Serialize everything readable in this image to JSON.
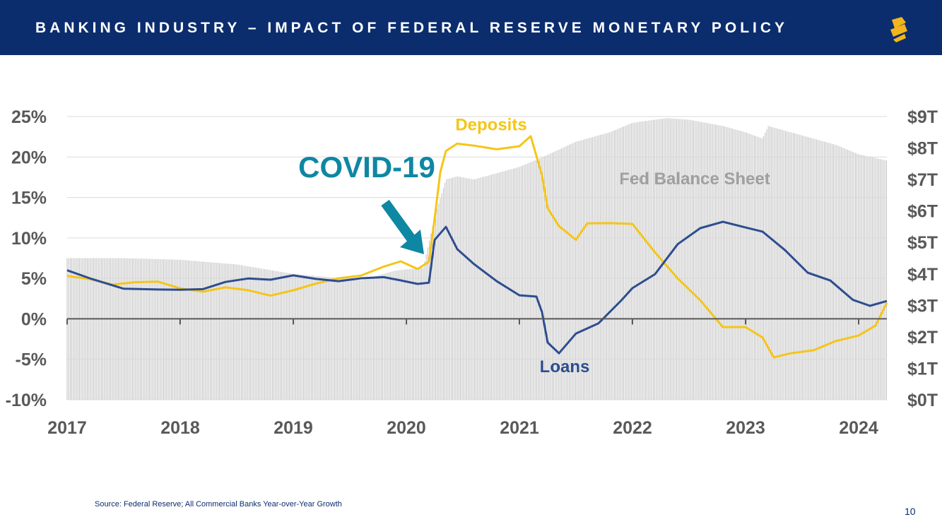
{
  "header": {
    "title": "BANKING INDUSTRY – IMPACT OF FEDERAL RESERVE MONETARY POLICY"
  },
  "footer": {
    "source": "Source: Federal Reserve; All Commercial Banks Year-over-Year Growth",
    "page_number": "10"
  },
  "colors": {
    "navy": "#0b2d6e",
    "deposits": "#f5c518",
    "loans": "#2e4d8f",
    "annotation": "#0e87a3",
    "balance": "#a0a0a0",
    "logo": "#f2b51c"
  },
  "chart_data": {
    "type": "line",
    "title": "",
    "x_range": [
      2017.0,
      2024.25
    ],
    "x_ticks": [
      2017,
      2018,
      2019,
      2020,
      2021,
      2022,
      2023,
      2024
    ],
    "x_tick_labels": [
      "2017",
      "2018",
      "2019",
      "2020",
      "2021",
      "2022",
      "2023",
      "2024"
    ],
    "y_left": {
      "range": [
        -10,
        25
      ],
      "ticks": [
        -10,
        -5,
        0,
        5,
        10,
        15,
        20,
        25
      ],
      "tick_labels": [
        "-10%",
        "-5%",
        "0%",
        "5%",
        "10%",
        "15%",
        "20%",
        "25%"
      ]
    },
    "y_right": {
      "range": [
        0,
        9
      ],
      "ticks": [
        0,
        1,
        2,
        3,
        4,
        5,
        6,
        7,
        8,
        9
      ],
      "tick_labels": [
        "$0T",
        "$1T",
        "$2T",
        "$3T",
        "$4T",
        "$5T",
        "$6T",
        "$7T",
        "$8T",
        "$9T"
      ]
    },
    "series": [
      {
        "name": "Deposits",
        "axis": "left",
        "label": "Deposits",
        "x": [
          2017.0,
          2017.2,
          2017.4,
          2017.6,
          2017.8,
          2018.0,
          2018.2,
          2018.4,
          2018.6,
          2018.8,
          2019.0,
          2019.2,
          2019.4,
          2019.6,
          2019.8,
          2019.95,
          2020.1,
          2020.2,
          2020.25,
          2020.3,
          2020.35,
          2020.45,
          2020.6,
          2020.8,
          2021.0,
          2021.1,
          2021.2,
          2021.25,
          2021.35,
          2021.5,
          2021.6,
          2021.8,
          2022.0,
          2022.2,
          2022.4,
          2022.6,
          2022.8,
          2023.0,
          2023.15,
          2023.25,
          2023.4,
          2023.6,
          2023.8,
          2024.0,
          2024.15,
          2024.25
        ],
        "values": [
          5.3,
          4.7,
          4.0,
          4.5,
          4.8,
          4.0,
          3.4,
          3.7,
          3.3,
          2.8,
          3.7,
          4.6,
          5.1,
          5.2,
          6.2,
          7.0,
          6.3,
          7.3,
          12.5,
          18.0,
          20.5,
          21.5,
          21.5,
          21.2,
          21.5,
          22.5,
          17.5,
          13.5,
          11.5,
          10.0,
          12.0,
          11.8,
          11.5,
          8.0,
          5.0,
          2.5,
          -0.8,
          -1.0,
          -2.5,
          -5.0,
          -4.3,
          -3.7,
          -2.5,
          -2.0,
          -1.0,
          2.0
        ]
      },
      {
        "name": "Loans",
        "axis": "left",
        "label": "Loans",
        "x": [
          2017.0,
          2017.2,
          2017.5,
          2017.8,
          2018.0,
          2018.2,
          2018.4,
          2018.6,
          2018.8,
          2019.0,
          2019.2,
          2019.4,
          2019.6,
          2019.8,
          2019.95,
          2020.1,
          2020.2,
          2020.25,
          2020.35,
          2020.45,
          2020.6,
          2020.8,
          2021.0,
          2021.15,
          2021.2,
          2021.25,
          2021.35,
          2021.5,
          2021.7,
          2021.9,
          2022.0,
          2022.2,
          2022.4,
          2022.6,
          2022.8,
          2023.0,
          2023.15,
          2023.35,
          2023.55,
          2023.75,
          2023.95,
          2024.1,
          2024.25
        ],
        "values": [
          6.0,
          4.8,
          3.5,
          3.6,
          3.8,
          3.9,
          4.6,
          4.8,
          4.6,
          5.3,
          5.1,
          4.9,
          5.1,
          5.0,
          4.5,
          4.2,
          4.6,
          10.0,
          11.5,
          8.5,
          6.5,
          4.5,
          3.0,
          3.0,
          1.0,
          -3.0,
          -4.5,
          -2.0,
          -0.5,
          2.5,
          4.0,
          5.5,
          9.0,
          11.0,
          12.0,
          11.5,
          11.0,
          8.5,
          5.5,
          4.5,
          2.3,
          1.8,
          2.2
        ]
      },
      {
        "name": "Fed Balance Sheet",
        "axis": "right",
        "label": "Fed Balance Sheet",
        "x": [
          2017.0,
          2017.5,
          2018.0,
          2018.5,
          2019.0,
          2019.6,
          2019.9,
          2020.15,
          2020.25,
          2020.35,
          2020.45,
          2020.6,
          2020.8,
          2021.0,
          2021.2,
          2021.5,
          2021.8,
          2022.0,
          2022.3,
          2022.5,
          2022.8,
          2023.0,
          2023.15,
          2023.2,
          2023.5,
          2023.8,
          2024.0,
          2024.25
        ],
        "values": [
          4.5,
          4.5,
          4.45,
          4.3,
          4.0,
          3.8,
          4.1,
          4.2,
          5.8,
          7.0,
          7.1,
          7.0,
          7.2,
          7.4,
          7.7,
          8.2,
          8.5,
          8.8,
          8.95,
          8.9,
          8.7,
          8.5,
          8.3,
          8.7,
          8.4,
          8.1,
          7.8,
          7.6
        ]
      }
    ],
    "annotations": [
      {
        "text": "Deposits",
        "x": 2020.75,
        "y": 23.3
      },
      {
        "text": "Loans",
        "x": 2021.4,
        "y": -6.6
      },
      {
        "text": "Fed Balance Sheet",
        "x": 2022.55,
        "y": 16.6
      },
      {
        "text": "COVID-19",
        "x": 2019.65,
        "y": 17.5
      }
    ]
  }
}
